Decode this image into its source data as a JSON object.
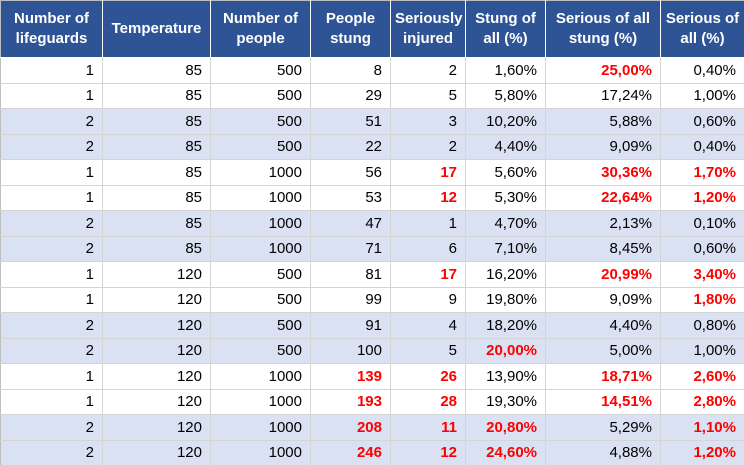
{
  "table": {
    "columns": [
      {
        "label": "Number of lifeguards"
      },
      {
        "label": "Temperature"
      },
      {
        "label": "Number of people"
      },
      {
        "label": "People stung"
      },
      {
        "label": "Seriously injured"
      },
      {
        "label": "Stung of all (%)"
      },
      {
        "label": "Serious of all stung (%)"
      },
      {
        "label": "Serious of all (%)"
      }
    ],
    "rows": [
      {
        "cells": [
          "1",
          "85",
          "500",
          "8",
          "2",
          "1,60%",
          "25,00%",
          "0,40%"
        ],
        "red_cols": [
          6
        ]
      },
      {
        "cells": [
          "1",
          "85",
          "500",
          "29",
          "5",
          "5,80%",
          "17,24%",
          "1,00%"
        ],
        "red_cols": []
      },
      {
        "cells": [
          "2",
          "85",
          "500",
          "51",
          "3",
          "10,20%",
          "5,88%",
          "0,60%"
        ],
        "red_cols": []
      },
      {
        "cells": [
          "2",
          "85",
          "500",
          "22",
          "2",
          "4,40%",
          "9,09%",
          "0,40%"
        ],
        "red_cols": []
      },
      {
        "cells": [
          "1",
          "85",
          "1000",
          "56",
          "17",
          "5,60%",
          "30,36%",
          "1,70%"
        ],
        "red_cols": [
          4,
          6,
          7
        ]
      },
      {
        "cells": [
          "1",
          "85",
          "1000",
          "53",
          "12",
          "5,30%",
          "22,64%",
          "1,20%"
        ],
        "red_cols": [
          4,
          6,
          7
        ]
      },
      {
        "cells": [
          "2",
          "85",
          "1000",
          "47",
          "1",
          "4,70%",
          "2,13%",
          "0,10%"
        ],
        "red_cols": []
      },
      {
        "cells": [
          "2",
          "85",
          "1000",
          "71",
          "6",
          "7,10%",
          "8,45%",
          "0,60%"
        ],
        "red_cols": []
      },
      {
        "cells": [
          "1",
          "120",
          "500",
          "81",
          "17",
          "16,20%",
          "20,99%",
          "3,40%"
        ],
        "red_cols": [
          4,
          6,
          7
        ]
      },
      {
        "cells": [
          "1",
          "120",
          "500",
          "99",
          "9",
          "19,80%",
          "9,09%",
          "1,80%"
        ],
        "red_cols": [
          7
        ]
      },
      {
        "cells": [
          "2",
          "120",
          "500",
          "91",
          "4",
          "18,20%",
          "4,40%",
          "0,80%"
        ],
        "red_cols": []
      },
      {
        "cells": [
          "2",
          "120",
          "500",
          "100",
          "5",
          "20,00%",
          "5,00%",
          "1,00%"
        ],
        "red_cols": [
          5
        ]
      },
      {
        "cells": [
          "1",
          "120",
          "1000",
          "139",
          "26",
          "13,90%",
          "18,71%",
          "2,60%"
        ],
        "red_cols": [
          3,
          4,
          6,
          7
        ]
      },
      {
        "cells": [
          "1",
          "120",
          "1000",
          "193",
          "28",
          "19,30%",
          "14,51%",
          "2,80%"
        ],
        "red_cols": [
          3,
          4,
          6,
          7
        ]
      },
      {
        "cells": [
          "2",
          "120",
          "1000",
          "208",
          "11",
          "20,80%",
          "5,29%",
          "1,10%"
        ],
        "red_cols": [
          3,
          4,
          5,
          7
        ]
      },
      {
        "cells": [
          "2",
          "120",
          "1000",
          "246",
          "12",
          "24,60%",
          "4,88%",
          "1,20%"
        ],
        "red_cols": [
          3,
          4,
          5,
          7
        ]
      }
    ]
  },
  "colors": {
    "header_bg": "#2F5496",
    "header_text": "#FFFFFF",
    "band_bg": "#D9E1F2",
    "row_bg": "#FFFFFF",
    "highlight_red": "#FF0000",
    "gridline": "#D4D4D4",
    "outer_border": "#BFBFBF",
    "cell_text": "#000000"
  }
}
